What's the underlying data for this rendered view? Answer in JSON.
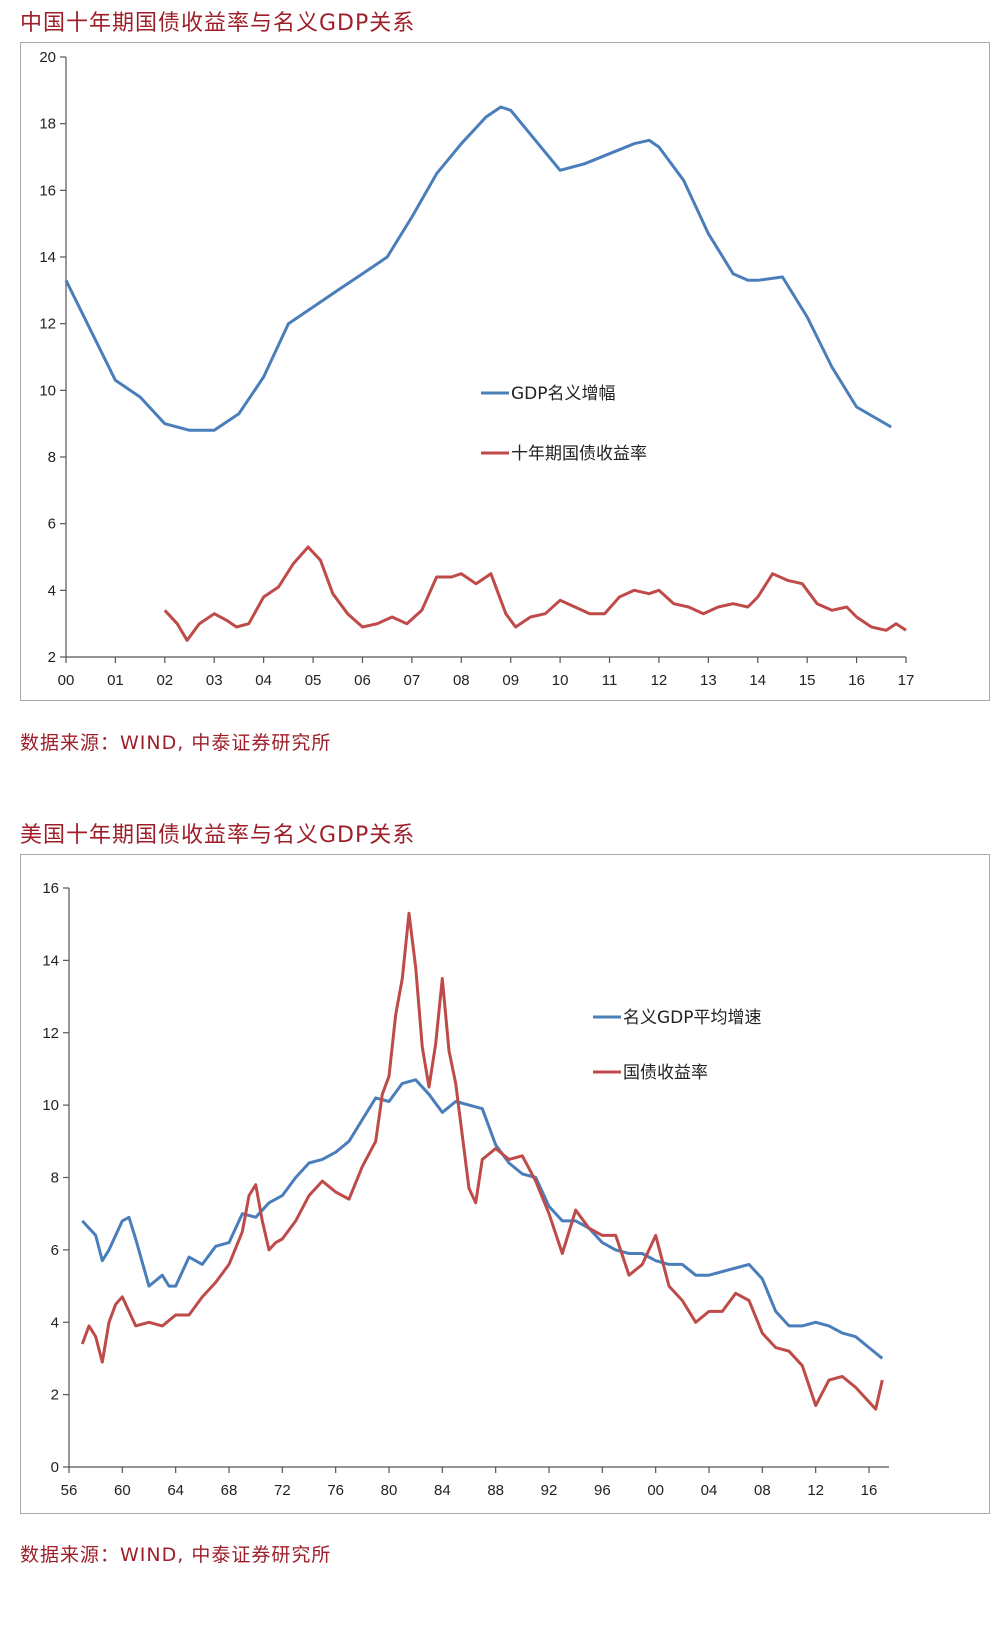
{
  "charts": [
    {
      "title": "中国十年期国债收益率与名义GDP关系",
      "source": "数据来源：WIND, 中泰证券研究所"
    },
    {
      "title": "美国十年期国债收益率与名义GDP关系",
      "source": "数据来源：WIND, 中泰证券研究所"
    }
  ],
  "chart_data": [
    {
      "type": "line",
      "title": "中国十年期国债收益率与名义GDP关系",
      "xlabel": "",
      "ylabel": "",
      "xlim": [
        0,
        17
      ],
      "ylim": [
        2,
        20
      ],
      "yticks": [
        2,
        4,
        6,
        8,
        10,
        12,
        14,
        16,
        18,
        20
      ],
      "xticks": [
        0,
        1,
        2,
        3,
        4,
        5,
        6,
        7,
        8,
        9,
        10,
        11,
        12,
        13,
        14,
        15,
        16,
        17
      ],
      "xtick_labels": [
        "00",
        "01",
        "02",
        "03",
        "04",
        "05",
        "06",
        "07",
        "08",
        "09",
        "10",
        "11",
        "12",
        "13",
        "14",
        "15",
        "16",
        "17"
      ],
      "grid": false,
      "legend_position": "center-right",
      "series": [
        {
          "name": "GDP名义增幅",
          "color": "#4a7ebb",
          "x": [
            0.0,
            0.5,
            1.0,
            1.5,
            2.0,
            2.5,
            3.0,
            3.5,
            4.0,
            4.5,
            5.0,
            5.5,
            6.0,
            6.5,
            7.0,
            7.5,
            8.0,
            8.5,
            8.8,
            9.0,
            9.5,
            10.0,
            10.5,
            11.0,
            11.5,
            11.8,
            12.0,
            12.5,
            13.0,
            13.5,
            13.8,
            14.0,
            14.5,
            15.0,
            15.5,
            16.0,
            16.7
          ],
          "y": [
            13.3,
            11.8,
            10.3,
            9.8,
            9.0,
            8.8,
            8.8,
            9.3,
            10.4,
            12.0,
            12.5,
            13.0,
            13.5,
            14.0,
            15.2,
            16.5,
            17.4,
            18.2,
            18.5,
            18.4,
            17.5,
            16.6,
            16.8,
            17.1,
            17.4,
            17.5,
            17.3,
            16.3,
            14.7,
            13.5,
            13.3,
            13.3,
            13.4,
            12.2,
            10.7,
            9.5,
            8.9
          ]
        },
        {
          "name": "十年期国债收益率",
          "color": "#be4b48",
          "x": [
            2.0,
            2.25,
            2.45,
            2.7,
            3.0,
            3.25,
            3.45,
            3.7,
            4.0,
            4.3,
            4.6,
            4.9,
            5.15,
            5.4,
            5.7,
            6.0,
            6.3,
            6.6,
            6.9,
            7.2,
            7.5,
            7.8,
            8.0,
            8.3,
            8.6,
            8.9,
            9.1,
            9.4,
            9.7,
            10.0,
            10.3,
            10.6,
            10.9,
            11.2,
            11.5,
            11.8,
            12.0,
            12.3,
            12.6,
            12.9,
            13.2,
            13.5,
            13.8,
            14.0,
            14.3,
            14.6,
            14.9,
            15.2,
            15.5,
            15.8,
            16.0,
            16.3,
            16.6,
            16.8,
            17.0
          ],
          "y": [
            3.4,
            3.0,
            2.5,
            3.0,
            3.3,
            3.1,
            2.9,
            3.0,
            3.8,
            4.1,
            4.8,
            5.3,
            4.9,
            3.9,
            3.3,
            2.9,
            3.0,
            3.2,
            3.0,
            3.4,
            4.4,
            4.4,
            4.5,
            4.2,
            4.5,
            3.3,
            2.9,
            3.2,
            3.3,
            3.7,
            3.5,
            3.3,
            3.3,
            3.8,
            4.0,
            3.9,
            4.0,
            3.6,
            3.5,
            3.3,
            3.5,
            3.6,
            3.5,
            3.8,
            4.5,
            4.3,
            4.2,
            3.6,
            3.4,
            3.5,
            3.2,
            2.9,
            2.8,
            3.0,
            2.8
          ]
        }
      ]
    },
    {
      "type": "line",
      "title": "美国十年期国债收益率与名义GDP关系",
      "xlabel": "",
      "ylabel": "",
      "xlim": [
        56,
        17
      ],
      "ylim": [
        0,
        16
      ],
      "yticks": [
        0,
        2,
        4,
        6,
        8,
        10,
        12,
        14,
        16
      ],
      "xtick_labels": [
        "56",
        "60",
        "64",
        "68",
        "72",
        "76",
        "80",
        "84",
        "88",
        "92",
        "96",
        "00",
        "04",
        "08",
        "12",
        "16"
      ],
      "xticks_year": [
        1956,
        1960,
        1964,
        1968,
        1972,
        1976,
        1980,
        1984,
        1988,
        1992,
        1996,
        2000,
        2004,
        2008,
        2012,
        2016
      ],
      "grid": false,
      "legend_position": "right",
      "series": [
        {
          "name": "名义GDP平均增速",
          "color": "#4a7ebb",
          "x": [
            1957,
            1958,
            1958.5,
            1959,
            1960,
            1960.5,
            1961,
            1962,
            1963,
            1963.5,
            1964,
            1965,
            1966,
            1967,
            1968,
            1969,
            1970,
            1971,
            1972,
            1973,
            1974,
            1975,
            1976,
            1977,
            1978,
            1979,
            1980,
            1981,
            1982,
            1983,
            1984,
            1985,
            1986,
            1987,
            1988,
            1989,
            1990,
            1991,
            1992,
            1993,
            1994,
            1995,
            1996,
            1997,
            1998,
            1999,
            2000,
            2001,
            2002,
            2003,
            2004,
            2005,
            2006,
            2007,
            2008,
            2009,
            2010,
            2011,
            2012,
            2013,
            2014,
            2015,
            2016,
            2017
          ],
          "y": [
            6.8,
            6.4,
            5.7,
            6.0,
            6.8,
            6.9,
            6.3,
            5.0,
            5.3,
            5.0,
            5.0,
            5.8,
            5.6,
            6.1,
            6.2,
            7.0,
            6.9,
            7.3,
            7.5,
            8.0,
            8.4,
            8.5,
            8.7,
            9.0,
            9.6,
            10.2,
            10.1,
            10.6,
            10.7,
            10.3,
            9.8,
            10.1,
            10.0,
            9.9,
            8.9,
            8.4,
            8.1,
            8.0,
            7.2,
            6.8,
            6.8,
            6.6,
            6.2,
            6.0,
            5.9,
            5.9,
            5.7,
            5.6,
            5.6,
            5.3,
            5.3,
            5.4,
            5.5,
            5.6,
            5.2,
            4.3,
            3.9,
            3.9,
            4.0,
            3.9,
            3.7,
            3.6,
            3.3,
            3.0
          ]
        },
        {
          "name": "国债收益率",
          "color": "#be4b48",
          "x": [
            1957,
            1957.5,
            1958,
            1958.5,
            1959,
            1959.5,
            1960,
            1960.5,
            1961,
            1962,
            1963,
            1964,
            1965,
            1966,
            1967,
            1968,
            1969,
            1969.5,
            1970,
            1970.5,
            1971,
            1971.5,
            1972,
            1973,
            1974,
            1975,
            1976,
            1977,
            1978,
            1979,
            1979.5,
            1980,
            1980.5,
            1981,
            1981.5,
            1982,
            1982.5,
            1983,
            1983.5,
            1984,
            1984.5,
            1985,
            1986,
            1986.5,
            1987,
            1988,
            1989,
            1990,
            1991,
            1992,
            1993,
            1994,
            1995,
            1996,
            1997,
            1998,
            1999,
            2000,
            2001,
            2002,
            2003,
            2004,
            2005,
            2006,
            2007,
            2008,
            2009,
            2010,
            2011,
            2012,
            2013,
            2014,
            2015,
            2016,
            2016.5,
            2017
          ],
          "y": [
            3.4,
            3.9,
            3.6,
            2.9,
            4.0,
            4.5,
            4.7,
            4.3,
            3.9,
            4.0,
            3.9,
            4.2,
            4.2,
            4.7,
            5.1,
            5.6,
            6.5,
            7.5,
            7.8,
            6.8,
            6.0,
            6.2,
            6.3,
            6.8,
            7.5,
            7.9,
            7.6,
            7.4,
            8.3,
            9.0,
            10.3,
            10.8,
            12.5,
            13.5,
            15.3,
            13.8,
            11.6,
            10.5,
            11.7,
            13.5,
            11.5,
            10.6,
            7.7,
            7.3,
            8.5,
            8.8,
            8.5,
            8.6,
            7.9,
            7.0,
            5.9,
            7.1,
            6.6,
            6.4,
            6.4,
            5.3,
            5.6,
            6.4,
            5.0,
            4.6,
            4.0,
            4.3,
            4.3,
            4.8,
            4.6,
            3.7,
            3.3,
            3.2,
            2.8,
            1.7,
            2.4,
            2.5,
            2.2,
            1.8,
            1.6,
            2.4
          ]
        }
      ]
    }
  ]
}
